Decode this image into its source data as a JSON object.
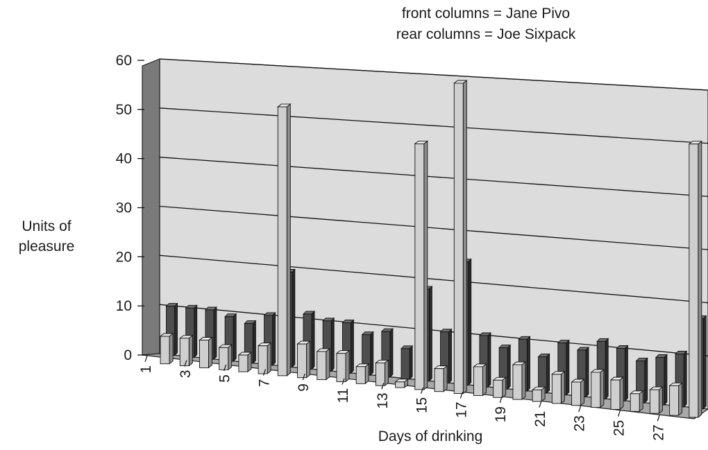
{
  "chart_data": {
    "type": "bar",
    "view": "3d-perspective",
    "annotation_lines": [
      "front columns = Jane Pivo",
      "rear columns = Joe Sixpack"
    ],
    "xlabel": "Days of drinking",
    "ylabel_lines": [
      "Units of",
      "pleasure"
    ],
    "ylim": [
      0,
      60
    ],
    "yticks": [
      0,
      10,
      20,
      30,
      40,
      50,
      60
    ],
    "x_tick_labels": [
      "1",
      "3",
      "5",
      "7",
      "9",
      "11",
      "13",
      "15",
      "17",
      "19",
      "21",
      "23",
      "25",
      "27"
    ],
    "categories": [
      1,
      2,
      3,
      4,
      5,
      6,
      7,
      8,
      9,
      10,
      11,
      12,
      13,
      14,
      15,
      16,
      17,
      18,
      19,
      20,
      21,
      22,
      23,
      24,
      25,
      26,
      27,
      28
    ],
    "series": [
      {
        "name": "Jane Pivo",
        "position": "front",
        "color": "#c8c8c8",
        "values": [
          5,
          5,
          5,
          4,
          3,
          5,
          48,
          6,
          5,
          5,
          3,
          4,
          1,
          43,
          4,
          54,
          5,
          3,
          6,
          2,
          5,
          4,
          6,
          5,
          3,
          4,
          5,
          46
        ]
      },
      {
        "name": "Joe Sixpack",
        "position": "rear",
        "color": "#4a4a4a",
        "values": [
          10,
          10,
          10,
          9,
          8,
          10,
          19,
          11,
          10,
          10,
          8,
          9,
          6,
          18,
          10,
          24,
          10,
          8,
          10,
          7,
          10,
          9,
          11,
          10,
          8,
          9,
          10,
          17
        ]
      }
    ],
    "grid": true,
    "colors": {
      "wall": "#dcdcdc",
      "floor": "#a8a8a8",
      "side_wall": "#7a7a7a"
    }
  }
}
